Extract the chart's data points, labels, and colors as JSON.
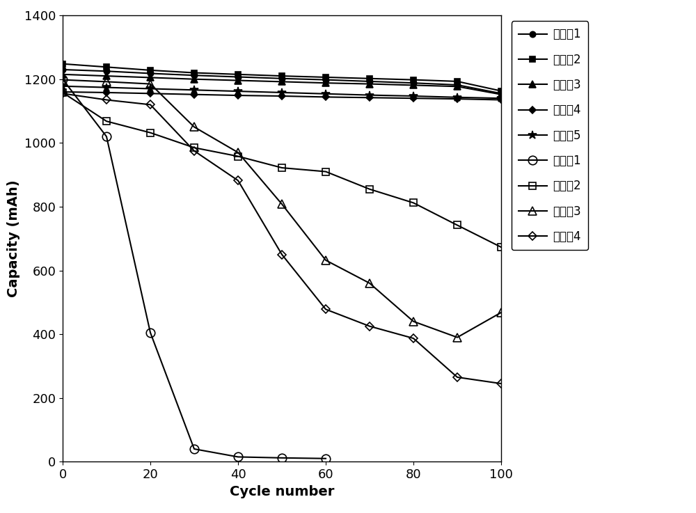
{
  "title": "",
  "xlabel": "Cycle number",
  "ylabel": "Capacity (mAh)",
  "xlim": [
    0,
    100
  ],
  "ylim": [
    0,
    1400
  ],
  "xticks": [
    0,
    20,
    40,
    60,
    80,
    100
  ],
  "yticks": [
    0,
    200,
    400,
    600,
    800,
    1000,
    1200,
    1400
  ],
  "series": [
    {
      "label": "实施例1",
      "x": [
        0,
        10,
        20,
        30,
        40,
        50,
        60,
        70,
        80,
        90,
        100
      ],
      "y": [
        1230,
        1225,
        1218,
        1212,
        1207,
        1202,
        1198,
        1193,
        1188,
        1182,
        1155
      ],
      "marker": "o",
      "fillstyle": "full",
      "markersize": 6,
      "linewidth": 1.5
    },
    {
      "label": "实施例2",
      "x": [
        0,
        10,
        20,
        30,
        40,
        50,
        60,
        70,
        80,
        90,
        100
      ],
      "y": [
        1248,
        1238,
        1228,
        1220,
        1215,
        1210,
        1206,
        1202,
        1198,
        1193,
        1163
      ],
      "marker": "s",
      "fillstyle": "full",
      "markersize": 6,
      "linewidth": 1.5
    },
    {
      "label": "实施例3",
      "x": [
        0,
        10,
        20,
        30,
        40,
        50,
        60,
        70,
        80,
        90,
        100
      ],
      "y": [
        1215,
        1210,
        1205,
        1200,
        1196,
        1192,
        1188,
        1185,
        1181,
        1177,
        1152
      ],
      "marker": "^",
      "fillstyle": "full",
      "markersize": 7,
      "linewidth": 1.5
    },
    {
      "label": "实施例4",
      "x": [
        0,
        10,
        20,
        30,
        40,
        50,
        60,
        70,
        80,
        90,
        100
      ],
      "y": [
        1160,
        1158,
        1155,
        1152,
        1149,
        1147,
        1144,
        1142,
        1140,
        1138,
        1135
      ],
      "marker": "D",
      "fillstyle": "full",
      "markersize": 5,
      "linewidth": 1.5
    },
    {
      "label": "实施例5",
      "x": [
        0,
        10,
        20,
        30,
        40,
        50,
        60,
        70,
        80,
        90,
        100
      ],
      "y": [
        1178,
        1174,
        1170,
        1166,
        1162,
        1158,
        1154,
        1150,
        1147,
        1143,
        1140
      ],
      "marker": "*",
      "fillstyle": "full",
      "markersize": 9,
      "linewidth": 1.5
    },
    {
      "label": "对比例1",
      "x": [
        0,
        10,
        20,
        30,
        40,
        50,
        60
      ],
      "y": [
        1200,
        1020,
        405,
        40,
        15,
        12,
        10
      ],
      "marker": "o",
      "fillstyle": "none",
      "markersize": 9,
      "linewidth": 1.5
    },
    {
      "label": "对比例2",
      "x": [
        0,
        10,
        20,
        30,
        40,
        50,
        60,
        70,
        80,
        90,
        100
      ],
      "y": [
        1158,
        1068,
        1032,
        985,
        958,
        922,
        910,
        855,
        812,
        742,
        673
      ],
      "marker": "s",
      "fillstyle": "none",
      "markersize": 7,
      "linewidth": 1.5
    },
    {
      "label": "对比例3",
      "x": [
        0,
        10,
        20,
        30,
        40,
        50,
        60,
        70,
        80,
        90,
        100
      ],
      "y": [
        1198,
        1192,
        1185,
        1050,
        970,
        808,
        632,
        560,
        440,
        390,
        468
      ],
      "marker": "^",
      "fillstyle": "none",
      "markersize": 8,
      "linewidth": 1.5
    },
    {
      "label": "对比例4",
      "x": [
        0,
        10,
        20,
        30,
        40,
        50,
        60,
        70,
        80,
        90,
        100
      ],
      "y": [
        1155,
        1135,
        1120,
        975,
        882,
        650,
        478,
        425,
        387,
        265,
        245
      ],
      "marker": "D",
      "fillstyle": "none",
      "markersize": 6,
      "linewidth": 1.5
    }
  ],
  "color": "#000000",
  "background_color": "#ffffff",
  "legend_fontsize": 12,
  "axis_label_fontsize": 14,
  "tick_fontsize": 13
}
